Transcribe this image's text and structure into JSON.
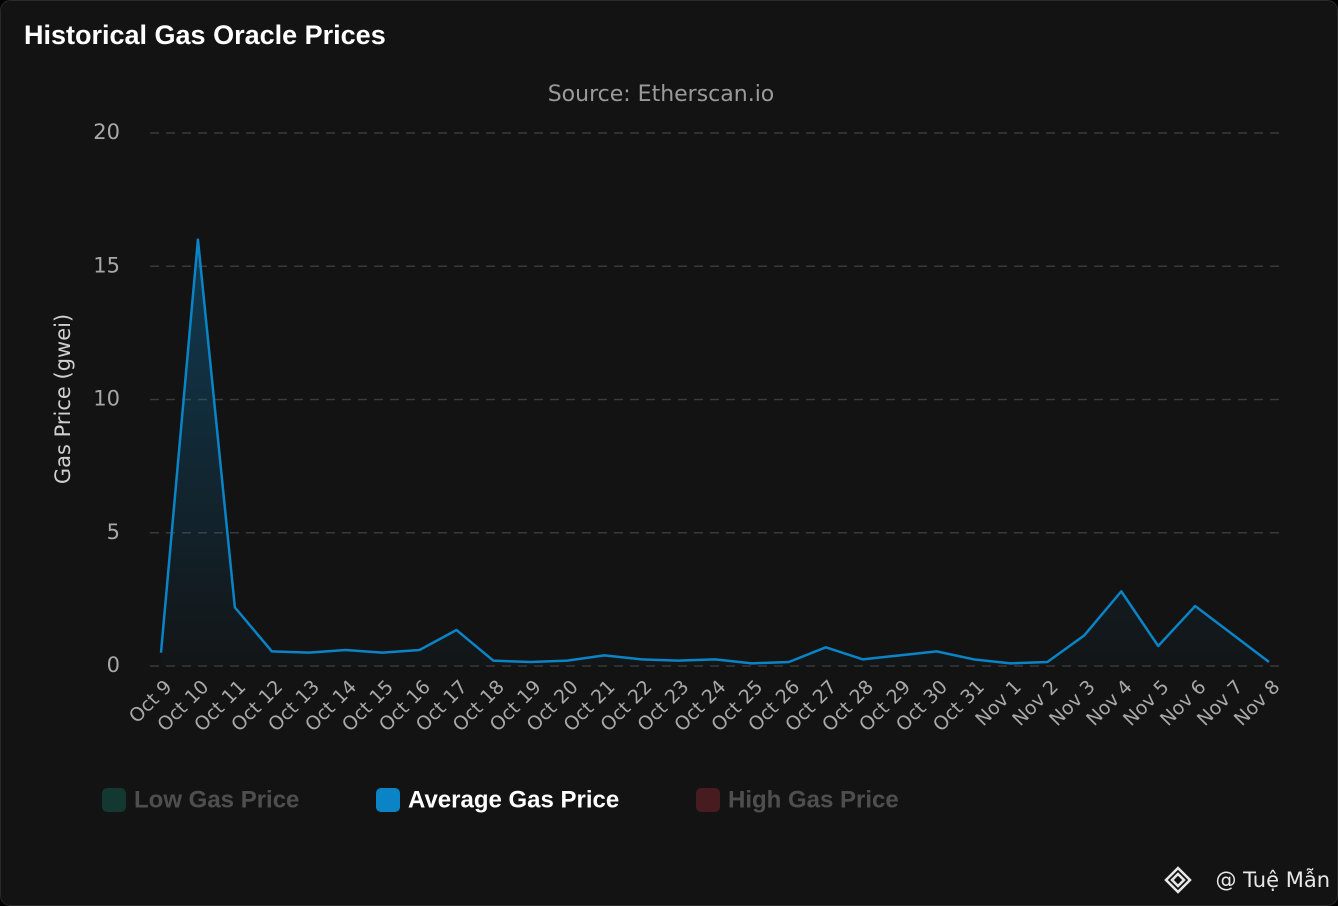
{
  "chart_data": {
    "type": "line",
    "title": "Historical Gas Oracle Prices",
    "subtitle": "Source: Etherscan.io",
    "y_label": "Gas Price (gwei)",
    "categories": [
      "Oct 9",
      "Oct 10",
      "Oct 11",
      "Oct 12",
      "Oct 13",
      "Oct 14",
      "Oct 15",
      "Oct 16",
      "Oct 17",
      "Oct 18",
      "Oct 19",
      "Oct 20",
      "Oct 21",
      "Oct 22",
      "Oct 23",
      "Oct 24",
      "Oct 25",
      "Oct 26",
      "Oct 27",
      "Oct 28",
      "Oct 29",
      "Oct 30",
      "Oct 31",
      "Nov 1",
      "Nov 2",
      "Nov 3",
      "Nov 4",
      "Nov 5",
      "Nov 6",
      "Nov 7",
      "Nov 8"
    ],
    "series": [
      {
        "name": "Average Gas Price",
        "color": "#0a84c6",
        "values": [
          0.5,
          16.0,
          2.2,
          0.55,
          0.5,
          0.6,
          0.5,
          0.6,
          1.35,
          0.2,
          0.15,
          0.2,
          0.4,
          0.25,
          0.2,
          0.25,
          0.1,
          0.15,
          0.7,
          0.25,
          0.4,
          0.55,
          0.25,
          0.1,
          0.15,
          1.15,
          2.8,
          0.75,
          2.25,
          1.2,
          0.15
        ]
      }
    ],
    "legend_items": [
      {
        "name": "Low Gas Price",
        "color": "#12a38a",
        "hidden": true
      },
      {
        "name": "Average Gas Price",
        "color": "#0a84c6",
        "hidden": false
      },
      {
        "name": "High Gas Price",
        "color": "#e0364a",
        "hidden": true
      }
    ],
    "ylim": [
      0,
      20
    ],
    "yticks": [
      0,
      5,
      10,
      15,
      20
    ],
    "grid": true,
    "legend": "bottom",
    "watermark": "@ Tuệ Mẫn"
  }
}
